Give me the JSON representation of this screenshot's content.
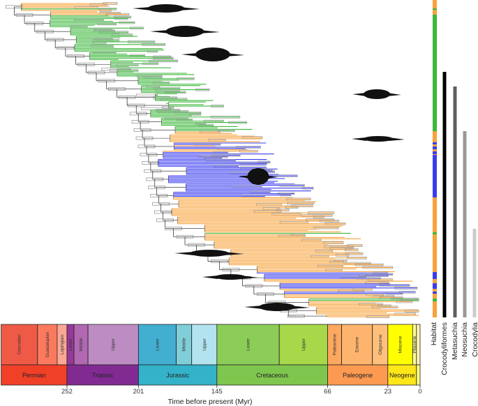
{
  "timescale": {
    "axis_label": "Time before present (Myr)",
    "ticks": [
      252,
      201,
      145,
      66,
      23,
      0
    ],
    "range_myr": [
      299,
      0
    ],
    "epochs": [
      {
        "label": "Cisuralian",
        "start": 299,
        "end": 273,
        "color": "#ef5a47"
      },
      {
        "label": "Guadalupian",
        "start": 273,
        "end": 259,
        "color": "#fb7a5e"
      },
      {
        "label": "Lopingian",
        "start": 259,
        "end": 252,
        "color": "#fba794"
      },
      {
        "label": "Lower",
        "start": 252,
        "end": 247,
        "color": "#983999"
      },
      {
        "label": "Middle",
        "start": 247,
        "end": 237,
        "color": "#b168b1"
      },
      {
        "label": "Upper",
        "start": 237,
        "end": 201,
        "color": "#bd8cc3"
      },
      {
        "label": "Lower",
        "start": 201,
        "end": 174,
        "color": "#42aed0"
      },
      {
        "label": "Middle",
        "start": 174,
        "end": 163,
        "color": "#80cfd8"
      },
      {
        "label": "Upper",
        "start": 163,
        "end": 145,
        "color": "#b3e3ee"
      },
      {
        "label": "Lower",
        "start": 145,
        "end": 100.5,
        "color": "#8ccd57"
      },
      {
        "label": "Upper",
        "start": 100.5,
        "end": 66,
        "color": "#a6d84a"
      },
      {
        "label": "Paleocene",
        "start": 66,
        "end": 56,
        "color": "#fda75f"
      },
      {
        "label": "Eocene",
        "start": 56,
        "end": 34,
        "color": "#fdb46c"
      },
      {
        "label": "Oligocene",
        "start": 34,
        "end": 23,
        "color": "#fec07a"
      },
      {
        "label": "Miocene",
        "start": 23,
        "end": 5.3,
        "color": "#ffff00"
      },
      {
        "label": "Pliocene",
        "start": 5.3,
        "end": 2.6,
        "color": "#ffff99"
      },
      {
        "label": "",
        "start": 2.6,
        "end": 0,
        "color": "#fff2ae"
      }
    ],
    "periods": [
      {
        "label": "Permian",
        "start": 299,
        "end": 252,
        "color": "#f04028"
      },
      {
        "label": "Triassic",
        "start": 252,
        "end": 201,
        "color": "#812b92"
      },
      {
        "label": "Jurassic",
        "start": 201,
        "end": 145,
        "color": "#34b2c9"
      },
      {
        "label": "Cretaceous",
        "start": 145,
        "end": 66,
        "color": "#7fc64e"
      },
      {
        "label": "Paleogene",
        "start": 66,
        "end": 23,
        "color": "#fd9a52"
      },
      {
        "label": "Neogene",
        "start": 23,
        "end": 2.6,
        "color": "#ffe619"
      },
      {
        "label": "",
        "start": 2.6,
        "end": 0,
        "color": "#f9f97f"
      }
    ]
  },
  "habitat": {
    "label": "Habitat",
    "colors": {
      "terrestrial": "#3cb83c",
      "freshwater": "#f8a23a",
      "marine": "#3a3cf0"
    }
  },
  "clades": [
    {
      "label": "Crocodyliformes",
      "color": "#000000"
    },
    {
      "label": "Metasuchia",
      "color": "#5e5e5e"
    },
    {
      "label": "Neosuchia",
      "color": "#999999"
    },
    {
      "label": "Crocodylia",
      "color": "#cccccc"
    }
  ],
  "tree": {
    "branch_color": "#222222",
    "node_bar_color": "#9a9a9a"
  }
}
